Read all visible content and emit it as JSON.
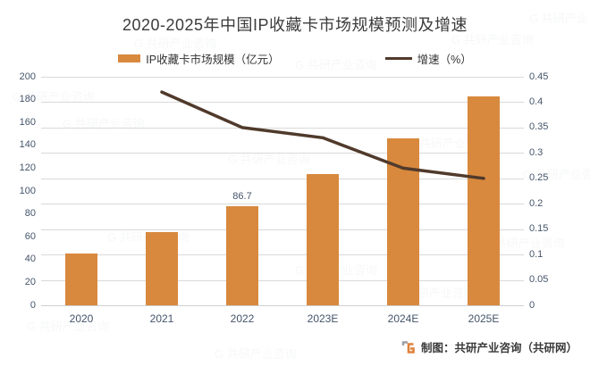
{
  "title": "2020-2025年中国IP收藏卡市场规模预测及增速",
  "legend": {
    "bars_label": "IP收藏卡市场规模（亿元）",
    "line_label": "增速（%）"
  },
  "attribution": {
    "text": "制图：共研产业咨询（共研网）",
    "logo": "gongyan-g-logo"
  },
  "watermark": {
    "text": "共研产业咨询"
  },
  "colors": {
    "bar": "#D8893E",
    "line": "#503A2B",
    "axis_text": "#44546A",
    "title_text": "#3B3B3B",
    "grid": "#D9D9D9"
  },
  "chart_data": {
    "type": "bar",
    "subtype": "bar-line-combo",
    "title": "2020-2025年中国IP收藏卡市场规模预测及增速",
    "categories": [
      "2020",
      "2021",
      "2022",
      "2023E",
      "2024E",
      "2025E"
    ],
    "series": [
      {
        "name": "IP收藏卡市场规模（亿元）",
        "type": "bar",
        "axis": "left",
        "values": [
          45,
          64,
          86.7,
          115,
          146,
          183
        ]
      },
      {
        "name": "增速（%）",
        "type": "line",
        "axis": "right",
        "values": [
          null,
          0.42,
          0.35,
          0.33,
          0.27,
          0.25
        ]
      }
    ],
    "bar_data_label": {
      "index": 2,
      "text": "86.7"
    },
    "left_axis": {
      "min": 0,
      "max": 200,
      "ticks": [
        "200",
        "180",
        "160",
        "140",
        "120",
        "100",
        "80",
        "60",
        "40",
        "20",
        "0"
      ]
    },
    "right_axis": {
      "min": 0,
      "max": 0.45,
      "ticks": [
        "0.45",
        "0.4",
        "0.35",
        "0.3",
        "0.25",
        "0.2",
        "0.15",
        "0.1",
        "0.05",
        "0"
      ]
    },
    "grid": "horizontal",
    "legend_position": "top"
  }
}
